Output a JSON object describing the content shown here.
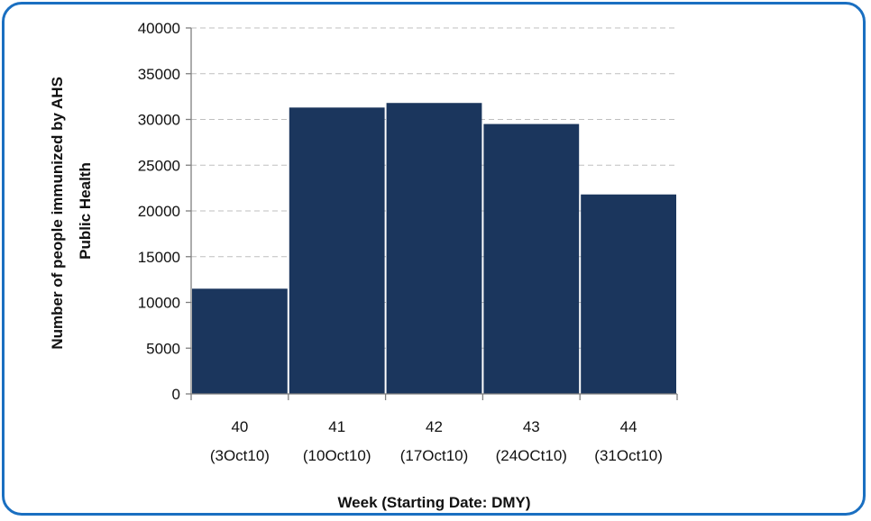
{
  "chart_data": {
    "type": "bar",
    "title": "",
    "xlabel": "Week (Starting Date: DMY)",
    "ylabel_lines": [
      "Number of people immunized by AHS",
      "Public Health"
    ],
    "categories": [
      {
        "week": "40",
        "date": "(3Oct10)"
      },
      {
        "week": "41",
        "date": "(10Oct10)"
      },
      {
        "week": "42",
        "date": "(17Oct10)"
      },
      {
        "week": "43",
        "date": "(24OCt10)"
      },
      {
        "week": "44",
        "date": "(31Oct10)"
      }
    ],
    "values": [
      11500,
      31300,
      31800,
      29500,
      21800
    ],
    "ylim": [
      0,
      40000
    ],
    "yticks": [
      "0",
      "5000",
      "10000",
      "15000",
      "20000",
      "25000",
      "30000",
      "35000",
      "40000"
    ],
    "grid": true,
    "bar_color": "#1b365d",
    "frame_color": "#1a6fc1"
  }
}
